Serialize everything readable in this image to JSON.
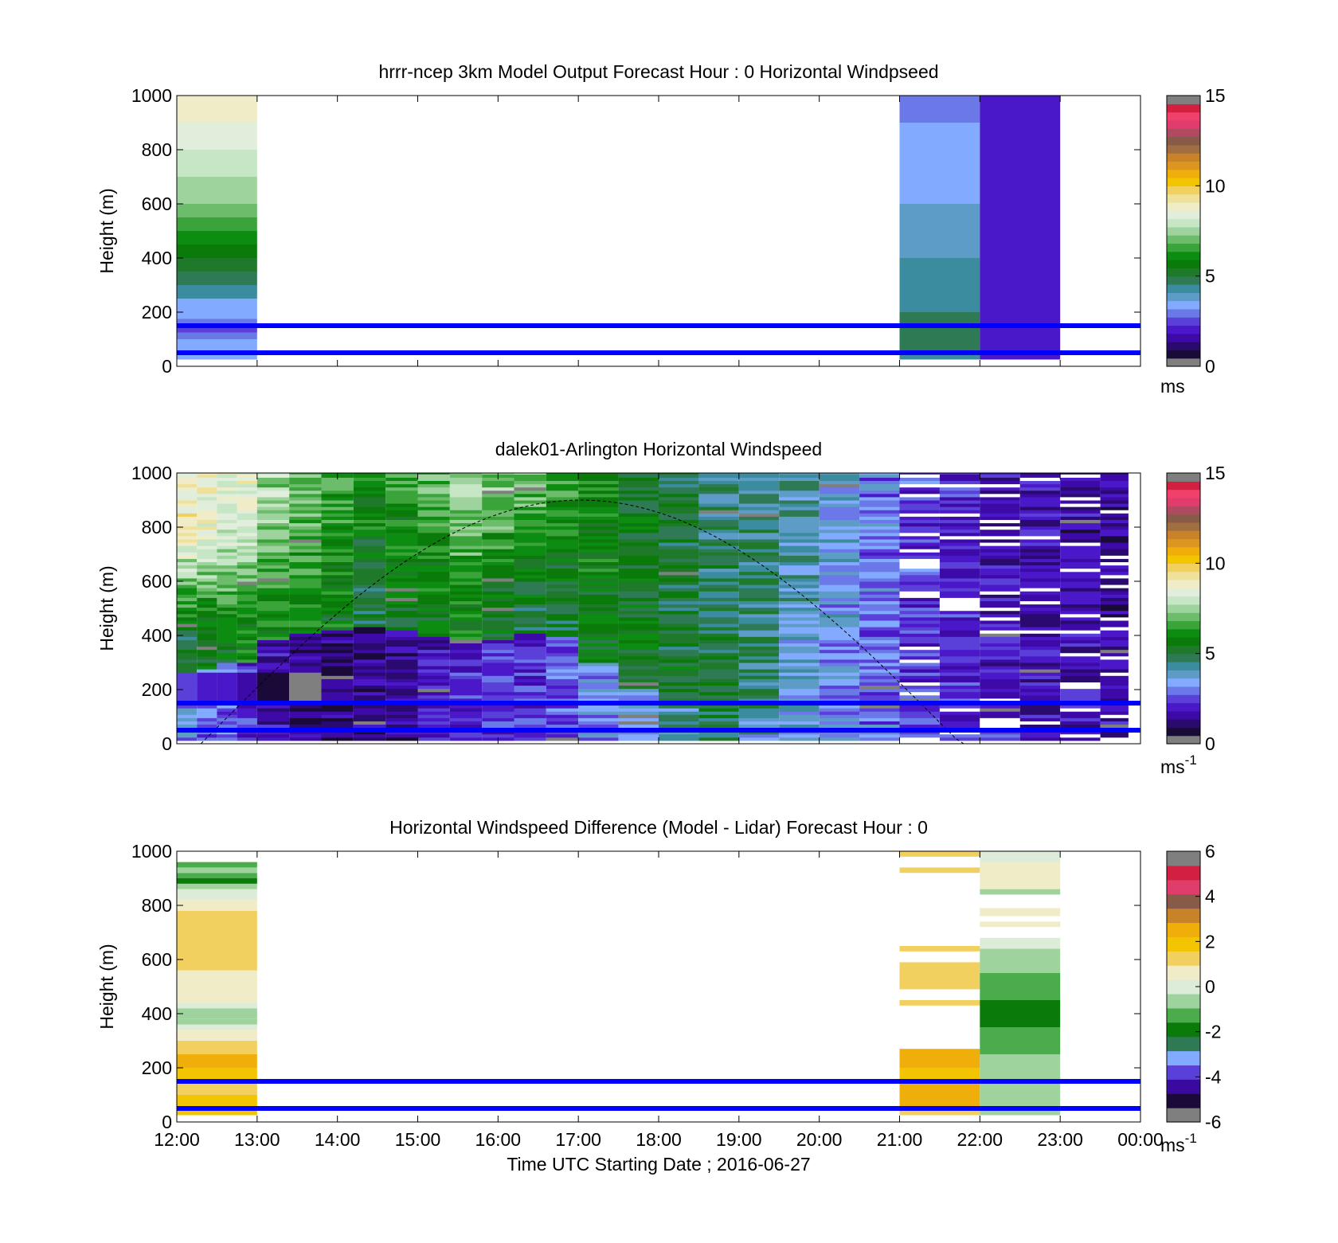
{
  "colors": {
    "line": "#0000ff",
    "speed_scale": [
      "#7f7f7f",
      "#1a0a3a",
      "#2a0a6e",
      "#3d0aa8",
      "#4a18c8",
      "#5a40d8",
      "#6a78e8",
      "#82aaff",
      "#5e9cc8",
      "#3a8c9e",
      "#2e7a54",
      "#1e7a2a",
      "#0a7a0a",
      "#0c8c10",
      "#3aa43a",
      "#6cbc6c",
      "#9ed39e",
      "#c6e6c6",
      "#e2eedc",
      "#f0ecc8",
      "#f0e19a",
      "#f2d060",
      "#f3c400",
      "#f0ae0a",
      "#dc9620",
      "#c88228",
      "#a06e40",
      "#885a48",
      "#b04a60",
      "#e03c6c",
      "#f0406c",
      "#d42040",
      "#7f7f7f"
    ],
    "diff_scale": [
      "#7f7f7f",
      "#1a0a3a",
      "#3a0aa0",
      "#5a40d8",
      "#82aaff",
      "#2e7a54",
      "#0a7a0a",
      "#4aac4a",
      "#9ed39e",
      "#dcecd8",
      "#f0ecc8",
      "#f2d060",
      "#f3c400",
      "#f0ae0a",
      "#c88228",
      "#885a48",
      "#e03c6c",
      "#d42040",
      "#7f7f7f"
    ]
  },
  "chart_data": [
    {
      "type": "heatmap",
      "title": "hrrr-ncep 3km Model Output   Forecast Hour : 0 Horizontal Windpseed",
      "xlabel": "",
      "ylabel": "Height (m)",
      "x_ticks": [
        "12:00",
        "13:00",
        "14:00",
        "15:00",
        "16:00",
        "17:00",
        "18:00",
        "19:00",
        "20:00",
        "21:00",
        "22:00",
        "23:00",
        "00:00"
      ],
      "x_tick_labels_shown": false,
      "y_ticks": [
        0,
        200,
        400,
        600,
        800,
        1000
      ],
      "ylim": [
        0,
        1000
      ],
      "colorbar": {
        "ticks": [
          0,
          5,
          10,
          15
        ],
        "range": [
          0,
          15
        ],
        "unit": "ms"
      },
      "horizontal_lines_m": [
        50,
        150
      ],
      "curve": false,
      "columns": [
        {
          "start_hour": 0,
          "end_hour": 1,
          "cells": [
            {
              "y0": 25,
              "y1": 50,
              "v": 3.4
            },
            {
              "y0": 50,
              "y1": 100,
              "v": 3.2
            },
            {
              "y0": 100,
              "y1": 125,
              "v": 2.6
            },
            {
              "y0": 125,
              "y1": 150,
              "v": 2.4
            },
            {
              "y0": 150,
              "y1": 175,
              "v": 2.8
            },
            {
              "y0": 175,
              "y1": 200,
              "v": 3.2
            },
            {
              "y0": 200,
              "y1": 250,
              "v": 3.5
            },
            {
              "y0": 250,
              "y1": 300,
              "v": 4.3
            },
            {
              "y0": 300,
              "y1": 350,
              "v": 4.9
            },
            {
              "y0": 350,
              "y1": 400,
              "v": 5.1
            },
            {
              "y0": 400,
              "y1": 450,
              "v": 5.6
            },
            {
              "y0": 450,
              "y1": 500,
              "v": 6.0
            },
            {
              "y0": 500,
              "y1": 550,
              "v": 6.4
            },
            {
              "y0": 550,
              "y1": 600,
              "v": 6.8
            },
            {
              "y0": 600,
              "y1": 700,
              "v": 7.3
            },
            {
              "y0": 700,
              "y1": 800,
              "v": 8.0
            },
            {
              "y0": 800,
              "y1": 900,
              "v": 8.6
            },
            {
              "y0": 900,
              "y1": 1000,
              "v": 9.0
            }
          ]
        },
        {
          "start_hour": 9,
          "end_hour": 10,
          "cells": [
            {
              "y0": 25,
              "y1": 50,
              "v": 4.0
            },
            {
              "y0": 50,
              "y1": 200,
              "v": 4.5
            },
            {
              "y0": 200,
              "y1": 300,
              "v": 4.2
            },
            {
              "y0": 300,
              "y1": 400,
              "v": 4.0
            },
            {
              "y0": 400,
              "y1": 500,
              "v": 3.8
            },
            {
              "y0": 500,
              "y1": 600,
              "v": 3.7
            },
            {
              "y0": 600,
              "y1": 700,
              "v": 3.5
            },
            {
              "y0": 700,
              "y1": 800,
              "v": 3.3
            },
            {
              "y0": 800,
              "y1": 900,
              "v": 3.1
            },
            {
              "y0": 900,
              "y1": 1000,
              "v": 2.9
            }
          ]
        },
        {
          "start_hour": 10,
          "end_hour": 11,
          "cells": [
            {
              "y0": 25,
              "y1": 1000,
              "v": 1.8
            }
          ]
        }
      ]
    },
    {
      "type": "heatmap",
      "title": "dalek01-Arlington  Horizontal Windspeed",
      "xlabel": "",
      "ylabel": "Height (m)",
      "x_ticks": [
        "12:00",
        "13:00",
        "14:00",
        "15:00",
        "16:00",
        "17:00",
        "18:00",
        "19:00",
        "20:00",
        "21:00",
        "22:00",
        "23:00",
        "00:00"
      ],
      "x_tick_labels_shown": false,
      "y_ticks": [
        0,
        200,
        400,
        600,
        800,
        1000
      ],
      "ylim": [
        0,
        1000
      ],
      "colorbar": {
        "ticks": [
          0,
          5,
          10,
          15
        ],
        "range": [
          0,
          15
        ],
        "unit": "ms",
        "unit_exponent": "-1"
      },
      "horizontal_lines_m": [
        50,
        150
      ],
      "curve": true,
      "lidar_column_profiles": [
        {
          "start_hour": 0.0,
          "end_hour": 0.25,
          "low": 3.0,
          "jet_top": 260,
          "jet": 5.0,
          "top": 9.0
        },
        {
          "start_hour": 0.25,
          "end_hour": 0.5,
          "low": 2.8,
          "jet_top": 270,
          "jet": 5.2,
          "top": 8.8
        },
        {
          "start_hour": 0.5,
          "end_hour": 0.75,
          "low": 2.5,
          "jet_top": 290,
          "jet": 5.5,
          "top": 8.5
        },
        {
          "start_hour": 0.75,
          "end_hour": 1.0,
          "low": 2.2,
          "jet_top": 300,
          "jet": 5.8,
          "top": 8.6
        },
        {
          "start_hour": 1.0,
          "end_hour": 1.4,
          "low": 1.5,
          "jet_top": 380,
          "jet": 6.0,
          "top": 7.5
        },
        {
          "start_hour": 1.4,
          "end_hour": 1.8,
          "low": 1.0,
          "jet_top": 400,
          "jet": 6.2,
          "top": 7.0
        },
        {
          "start_hour": 1.8,
          "end_hour": 2.2,
          "low": 1.0,
          "jet_top": 420,
          "jet": 5.6,
          "top": 6.5
        },
        {
          "start_hour": 2.2,
          "end_hour": 2.6,
          "low": 1.2,
          "jet_top": 430,
          "jet": 5.0,
          "top": 6.0
        },
        {
          "start_hour": 2.6,
          "end_hour": 3.0,
          "low": 1.4,
          "jet_top": 410,
          "jet": 5.4,
          "top": 6.4
        },
        {
          "start_hour": 3.0,
          "end_hour": 3.4,
          "low": 1.8,
          "jet_top": 390,
          "jet": 5.6,
          "top": 6.8
        },
        {
          "start_hour": 3.4,
          "end_hour": 3.8,
          "low": 2.0,
          "jet_top": 370,
          "jet": 5.8,
          "top": 7.4
        },
        {
          "start_hour": 3.8,
          "end_hour": 4.2,
          "low": 2.2,
          "jet_top": 380,
          "jet": 5.2,
          "top": 7.2
        },
        {
          "start_hour": 4.2,
          "end_hour": 4.6,
          "low": 2.2,
          "jet_top": 400,
          "jet": 5.0,
          "top": 7.0
        },
        {
          "start_hour": 4.6,
          "end_hour": 5.0,
          "low": 2.6,
          "jet_top": 390,
          "jet": 5.0,
          "top": 6.4
        },
        {
          "start_hour": 5.0,
          "end_hour": 5.5,
          "low": 3.0,
          "jet_top": 300,
          "jet": 5.4,
          "top": 5.8
        },
        {
          "start_hour": 5.5,
          "end_hour": 6.0,
          "low": 3.4,
          "jet_top": 200,
          "jet": 5.6,
          "top": 5.2
        },
        {
          "start_hour": 6.0,
          "end_hour": 6.5,
          "low": 4.2,
          "jet_top": 150,
          "jet": 5.2,
          "top": 5.0
        },
        {
          "start_hour": 6.5,
          "end_hour": 7.0,
          "low": 4.8,
          "jet_top": 120,
          "jet": 4.9,
          "top": 4.6
        },
        {
          "start_hour": 7.0,
          "end_hour": 7.5,
          "low": 3.8,
          "jet_top": 100,
          "jet": 4.6,
          "top": 4.4
        },
        {
          "start_hour": 7.5,
          "end_hour": 8.0,
          "low": 3.4,
          "jet_top": 100,
          "jet": 3.6,
          "top": 4.0
        },
        {
          "start_hour": 8.0,
          "end_hour": 8.5,
          "low": 3.2,
          "jet_top": 100,
          "jet": 3.0,
          "top": 3.4
        },
        {
          "start_hour": 8.5,
          "end_hour": 9.0,
          "low": 2.8,
          "jet_top": 100,
          "jet": 2.6,
          "top": 2.8
        },
        {
          "start_hour": 9.0,
          "end_hour": 9.5,
          "low": 2.4,
          "jet_top": 100,
          "jet": 2.2,
          "top": 2.3
        },
        {
          "start_hour": 9.5,
          "end_hour": 10.0,
          "low": 2.2,
          "jet_top": 100,
          "jet": 2.0,
          "top": 2.0
        },
        {
          "start_hour": 10.0,
          "end_hour": 10.5,
          "low": 2.0,
          "jet_top": 100,
          "jet": 1.8,
          "top": 1.6
        },
        {
          "start_hour": 10.5,
          "end_hour": 11.0,
          "low": 1.8,
          "jet_top": 100,
          "jet": 1.6,
          "top": 1.5
        },
        {
          "start_hour": 11.0,
          "end_hour": 11.5,
          "low": 1.6,
          "jet_top": 100,
          "jet": 1.5,
          "top": 1.4
        },
        {
          "start_hour": 11.5,
          "end_hour": 11.85,
          "low": 1.5,
          "jet_top": 100,
          "jet": 1.4,
          "top": 1.3
        }
      ]
    },
    {
      "type": "heatmap",
      "title": "Horizontal Windspeed Difference (Model - Lidar) Forecast Hour : 0",
      "xlabel": "Time UTC  Starting Date ; 2016-06-27",
      "ylabel": "Height (m)",
      "x_ticks": [
        "12:00",
        "13:00",
        "14:00",
        "15:00",
        "16:00",
        "17:00",
        "18:00",
        "19:00",
        "20:00",
        "21:00",
        "22:00",
        "23:00",
        "00:00"
      ],
      "x_tick_labels_shown": true,
      "y_ticks": [
        0,
        200,
        400,
        600,
        800,
        1000
      ],
      "ylim": [
        0,
        1000
      ],
      "colorbar": {
        "ticks": [
          -6,
          -4,
          -2,
          0,
          2,
          4,
          6
        ],
        "range": [
          -6,
          6
        ],
        "unit": "ms",
        "unit_exponent": "-1"
      },
      "horizontal_lines_m": [
        50,
        150
      ],
      "curve": false,
      "columns": [
        {
          "start_hour": 0,
          "end_hour": 1,
          "cells": [
            {
              "y0": 25,
              "y1": 50,
              "v": 2.2
            },
            {
              "y0": 50,
              "y1": 100,
              "v": 1.8
            },
            {
              "y0": 100,
              "y1": 150,
              "v": 1.6
            },
            {
              "y0": 150,
              "y1": 200,
              "v": 2.0
            },
            {
              "y0": 200,
              "y1": 250,
              "v": 2.4
            },
            {
              "y0": 250,
              "y1": 300,
              "v": 1.6
            },
            {
              "y0": 300,
              "y1": 340,
              "v": 0.6
            },
            {
              "y0": 340,
              "y1": 360,
              "v": 0.0
            },
            {
              "y0": 360,
              "y1": 380,
              "v": -0.6
            },
            {
              "y0": 380,
              "y1": 420,
              "v": -0.9
            },
            {
              "y0": 420,
              "y1": 440,
              "v": 0.0
            },
            {
              "y0": 440,
              "y1": 500,
              "v": 0.4
            },
            {
              "y0": 500,
              "y1": 560,
              "v": 0.8
            },
            {
              "y0": 560,
              "y1": 700,
              "v": 1.2
            },
            {
              "y0": 700,
              "y1": 780,
              "v": 1.6
            },
            {
              "y0": 780,
              "y1": 820,
              "v": 0.8
            },
            {
              "y0": 820,
              "y1": 860,
              "v": 0.2
            },
            {
              "y0": 860,
              "y1": 880,
              "v": -0.8
            },
            {
              "y0": 880,
              "y1": 900,
              "v": -2.2
            },
            {
              "y0": 900,
              "y1": 920,
              "v": -1.6
            },
            {
              "y0": 920,
              "y1": 940,
              "v": -0.4
            },
            {
              "y0": 940,
              "y1": 960,
              "v": -1.2
            }
          ]
        },
        {
          "start_hour": 9,
          "end_hour": 10,
          "cells": [
            {
              "y0": 25,
              "y1": 50,
              "v": 1.4
            },
            {
              "y0": 50,
              "y1": 150,
              "v": 2.4
            },
            {
              "y0": 150,
              "y1": 200,
              "v": 1.8
            },
            {
              "y0": 200,
              "y1": 270,
              "v": 2.6
            },
            {
              "y0": 430,
              "y1": 450,
              "v": 1.6
            },
            {
              "y0": 490,
              "y1": 590,
              "v": 1.2
            },
            {
              "y0": 630,
              "y1": 650,
              "v": 1.2
            },
            {
              "y0": 920,
              "y1": 940,
              "v": 1.2
            },
            {
              "y0": 980,
              "y1": 1000,
              "v": 1.2
            }
          ]
        },
        {
          "start_hour": 10,
          "end_hour": 11,
          "cells": [
            {
              "y0": 25,
              "y1": 50,
              "v": -0.8
            },
            {
              "y0": 50,
              "y1": 150,
              "v": -0.6
            },
            {
              "y0": 150,
              "y1": 250,
              "v": -0.8
            },
            {
              "y0": 250,
              "y1": 350,
              "v": -1.2
            },
            {
              "y0": 350,
              "y1": 450,
              "v": -1.8
            },
            {
              "y0": 450,
              "y1": 550,
              "v": -1.6
            },
            {
              "y0": 550,
              "y1": 640,
              "v": -1.0
            },
            {
              "y0": 640,
              "y1": 680,
              "v": -0.3
            },
            {
              "y0": 720,
              "y1": 740,
              "v": 0.4
            },
            {
              "y0": 760,
              "y1": 790,
              "v": 0.6
            },
            {
              "y0": 840,
              "y1": 860,
              "v": -0.6
            },
            {
              "y0": 860,
              "y1": 960,
              "v": 0.6
            },
            {
              "y0": 960,
              "y1": 980,
              "v": 0.3
            },
            {
              "y0": 980,
              "y1": 1000,
              "v": 0.0
            }
          ]
        }
      ]
    }
  ]
}
